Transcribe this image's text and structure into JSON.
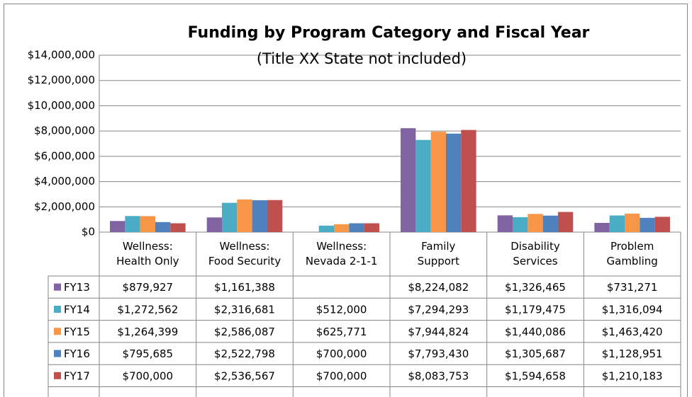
{
  "chart_data": {
    "type": "bar",
    "title": "Funding by Program Category and Fiscal Year",
    "subtitle": "(Title XX State not included)",
    "categories": [
      "Wellness:\nHealth Only",
      "Wellness:\nFood Security",
      "Wellness:\nNevada 2-1-1",
      "Family\nSupport",
      "Disability\nServices",
      "Problem\nGambling"
    ],
    "series": [
      {
        "name": "FY13",
        "color": "#8064a2",
        "values": [
          879927,
          1161388,
          null,
          8224082,
          1326465,
          731271
        ],
        "value_labels": [
          "$879,927",
          "$1,161,388",
          null,
          "$8,224,082",
          "$1,326,465",
          "$731,271"
        ]
      },
      {
        "name": "FY14",
        "color": "#4bacc6",
        "values": [
          1272562,
          2316681,
          512000,
          7294293,
          1179475,
          1316094
        ],
        "value_labels": [
          "$1,272,562",
          "$2,316,681",
          "$512,000",
          "$7,294,293",
          "$1,179,475",
          "$1,316,094"
        ]
      },
      {
        "name": "FY15",
        "color": "#f79646",
        "values": [
          1264399,
          2586087,
          625771,
          7944824,
          1440086,
          1463420
        ],
        "value_labels": [
          "$1,264,399",
          "$2,586,087",
          "$625,771",
          "$7,944,824",
          "$1,440,086",
          "$1,463,420"
        ]
      },
      {
        "name": "FY16",
        "color": "#4f81bd",
        "values": [
          795685,
          2522798,
          700000,
          7793430,
          1305687,
          1128951
        ],
        "value_labels": [
          "$795,685",
          "$2,522,798",
          "$700,000",
          "$7,793,430",
          "$1,305,687",
          "$1,128,951"
        ]
      },
      {
        "name": "FY17",
        "color": "#c0504d",
        "values": [
          700000,
          2536567,
          700000,
          8083753,
          1594658,
          1210183
        ],
        "value_labels": [
          "$700,000",
          "$2,536,567",
          "$700,000",
          "$8,083,753",
          "$1,594,658",
          "$1,210,183"
        ]
      }
    ],
    "ylim": [
      0,
      14000000
    ],
    "yticks": [
      {
        "value": 0,
        "label": "$0"
      },
      {
        "value": 2000000,
        "label": "$2,000,000"
      },
      {
        "value": 4000000,
        "label": "$4,000,000"
      },
      {
        "value": 6000000,
        "label": "$6,000,000"
      },
      {
        "value": 8000000,
        "label": "$8,000,000"
      },
      {
        "value": 10000000,
        "label": "$10,000,000"
      },
      {
        "value": 12000000,
        "label": "$12,000,000"
      },
      {
        "value": 14000000,
        "label": "$14,000,000"
      }
    ],
    "grid": true
  }
}
